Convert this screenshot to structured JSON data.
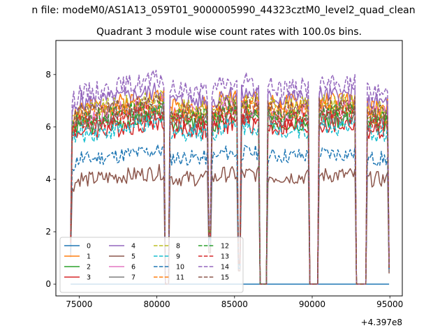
{
  "figure": {
    "suptitle": "n file: modeM0/AS1A13_059T01_9000005990_44323cztM0_level2_quad_clean",
    "offset_text": "+4.397e8"
  },
  "chart_data": {
    "type": "line",
    "title": "Quadrant 3 module wise count rates with 100.0s bins.",
    "xlabel": "",
    "ylabel": "",
    "xlim": [
      73500,
      95800
    ],
    "ylim": [
      -0.45,
      9.3
    ],
    "x_ticks": [
      75000,
      80000,
      85000,
      90000,
      95000
    ],
    "x_tick_labels": [
      "75000",
      "80000",
      "85000",
      "90000",
      "95000"
    ],
    "y_ticks": [
      0,
      2,
      4,
      6,
      8
    ],
    "y_tick_labels": [
      "0",
      "2",
      "4",
      "6",
      "8"
    ],
    "grid": false,
    "legend_position": "lower-left",
    "legend_columns": 4,
    "x_range": [
      74450,
      94950
    ],
    "bin_seconds": 100.0,
    "gaps": [
      [
        80520,
        80780
      ],
      [
        86600,
        87100
      ],
      [
        89850,
        90350
      ],
      [
        92850,
        93450
      ]
    ],
    "dips": [
      [
        83400,
        1.9
      ],
      [
        85300,
        0.8
      ]
    ],
    "series": [
      {
        "name": "0",
        "color": "#1f77b4",
        "style": "solid",
        "level": 0.0,
        "amp": 0.0,
        "seed": 1
      },
      {
        "name": "1",
        "color": "#ff7f0e",
        "style": "solid",
        "level": 6.9,
        "amp": 0.35,
        "seed": 2
      },
      {
        "name": "2",
        "color": "#2ca02c",
        "style": "solid",
        "level": 6.2,
        "amp": 0.35,
        "seed": 3
      },
      {
        "name": "3",
        "color": "#d62728",
        "style": "solid",
        "level": 6.0,
        "amp": 0.4,
        "seed": 4
      },
      {
        "name": "4",
        "color": "#9467bd",
        "style": "solid",
        "level": 7.1,
        "amp": 0.35,
        "seed": 5
      },
      {
        "name": "5",
        "color": "#8c564b",
        "style": "solid",
        "level": 4.1,
        "amp": 0.3,
        "seed": 6
      },
      {
        "name": "6",
        "color": "#e377c2",
        "style": "solid",
        "level": 6.6,
        "amp": 0.35,
        "seed": 7
      },
      {
        "name": "7",
        "color": "#7f7f7f",
        "style": "solid",
        "level": 6.3,
        "amp": 0.35,
        "seed": 8
      },
      {
        "name": "8",
        "color": "#bcbd22",
        "style": "dashed",
        "level": 6.8,
        "amp": 0.35,
        "seed": 9
      },
      {
        "name": "9",
        "color": "#17becf",
        "style": "dashed",
        "level": 5.9,
        "amp": 0.35,
        "seed": 10
      },
      {
        "name": "10",
        "color": "#1f77b4",
        "style": "dashed",
        "level": 4.9,
        "amp": 0.3,
        "seed": 11
      },
      {
        "name": "11",
        "color": "#ff7f0e",
        "style": "dashed",
        "level": 6.6,
        "amp": 0.35,
        "seed": 12
      },
      {
        "name": "12",
        "color": "#2ca02c",
        "style": "dashed",
        "level": 6.5,
        "amp": 0.35,
        "seed": 13
      },
      {
        "name": "13",
        "color": "#d62728",
        "style": "dashed",
        "level": 6.3,
        "amp": 0.35,
        "seed": 14
      },
      {
        "name": "14",
        "color": "#9467bd",
        "style": "dashed",
        "level": 7.5,
        "amp": 0.4,
        "seed": 15
      },
      {
        "name": "15",
        "color": "#8c564b",
        "style": "dashed",
        "level": 6.7,
        "amp": 0.35,
        "seed": 16
      }
    ]
  }
}
